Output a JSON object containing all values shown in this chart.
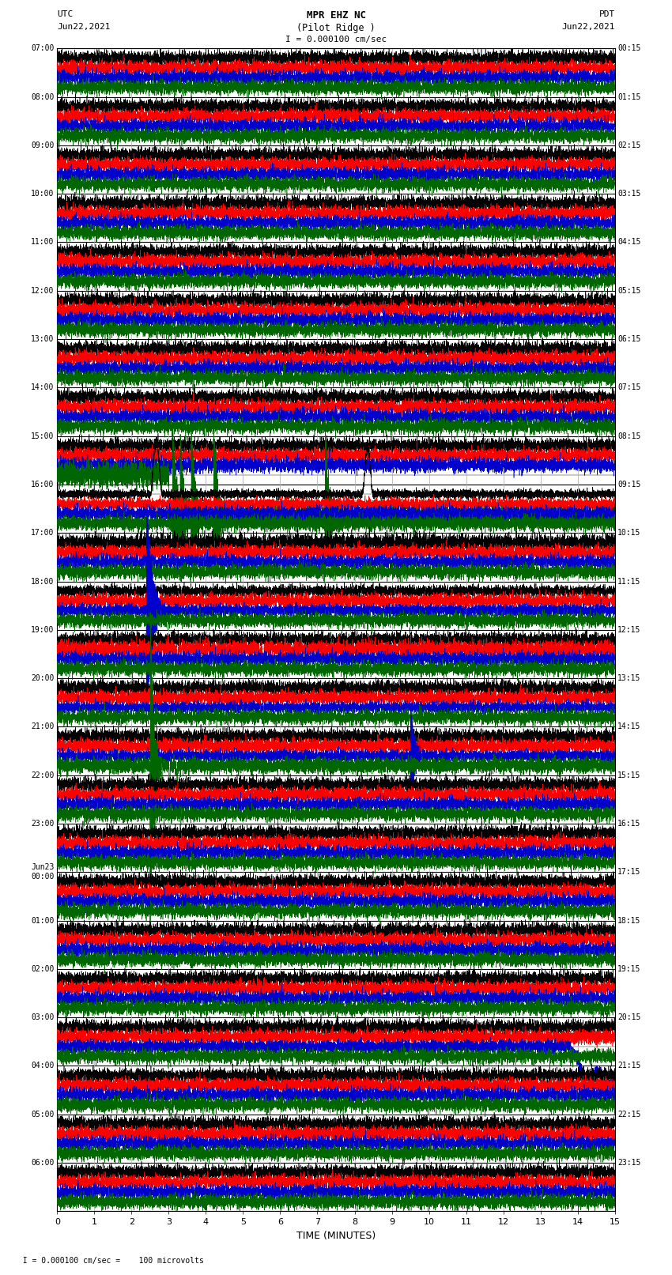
{
  "title_line1": "MPR EHZ NC",
  "title_line2": "(Pilot Ridge )",
  "title_line3": "I = 0.000100 cm/sec",
  "left_header": "UTC",
  "left_date": "Jun22,2021",
  "right_header": "PDT",
  "right_date": "Jun22,2021",
  "xlabel": "TIME (MINUTES)",
  "footer": "  I = 0.000100 cm/sec =    100 microvolts",
  "left_times": [
    "07:00",
    "08:00",
    "09:00",
    "10:00",
    "11:00",
    "12:00",
    "13:00",
    "14:00",
    "15:00",
    "16:00",
    "17:00",
    "18:00",
    "19:00",
    "20:00",
    "21:00",
    "22:00",
    "23:00",
    "Jun23\n00:00",
    "01:00",
    "02:00",
    "03:00",
    "04:00",
    "05:00",
    "06:00"
  ],
  "right_times": [
    "00:15",
    "01:15",
    "02:15",
    "03:15",
    "04:15",
    "05:15",
    "06:15",
    "07:15",
    "08:15",
    "09:15",
    "10:15",
    "11:15",
    "12:15",
    "13:15",
    "14:15",
    "15:15",
    "16:15",
    "17:15",
    "18:15",
    "19:15",
    "20:15",
    "21:15",
    "22:15",
    "23:15"
  ],
  "num_rows": 24,
  "x_min": 0,
  "x_max": 15,
  "x_ticks": [
    0,
    1,
    2,
    3,
    4,
    5,
    6,
    7,
    8,
    9,
    10,
    11,
    12,
    13,
    14,
    15
  ],
  "bg_color": "#ffffff",
  "grid_color_h": "#000000",
  "grid_color_v": "#aaaaaa",
  "sub_lines_per_row": 4,
  "trace_colors": [
    "#000000",
    "#ff0000",
    "#0000cc",
    "#006600"
  ],
  "trace_color_names": [
    "black",
    "red",
    "blue",
    "green"
  ]
}
